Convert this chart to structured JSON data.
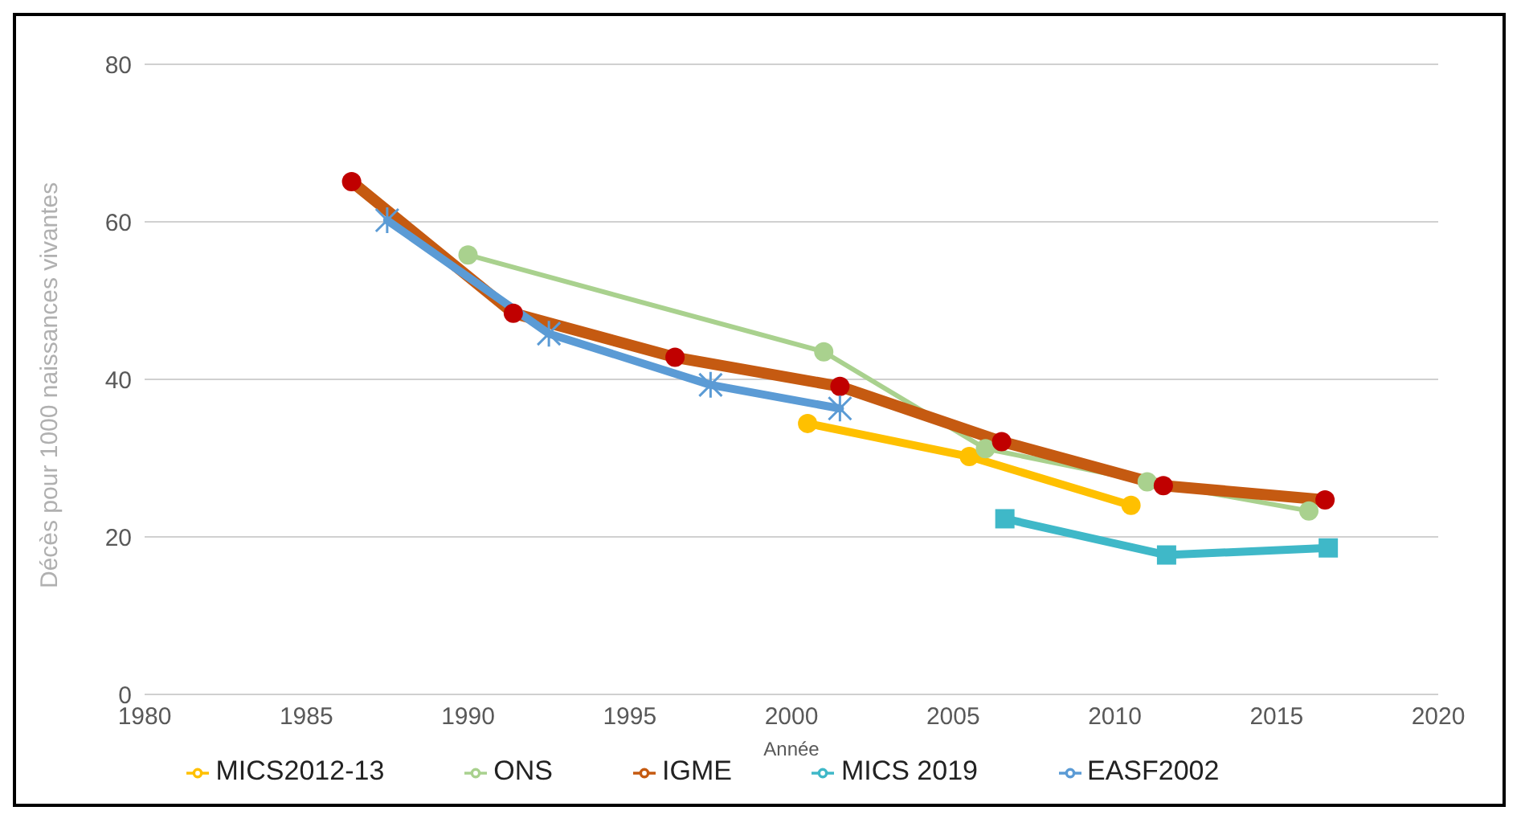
{
  "chart_data": {
    "type": "line",
    "xlabel": "Année",
    "ylabel": "Décès pour 1000 naissances vivantes",
    "xlim": [
      1980,
      2020
    ],
    "xticks": [
      1980,
      1985,
      1990,
      1995,
      2000,
      2005,
      2010,
      2015,
      2020
    ],
    "ylim": [
      0,
      80
    ],
    "yticks": [
      0,
      20,
      40,
      60,
      80
    ],
    "grid": "y",
    "legend": "bottom",
    "line_style": "solid",
    "series": [
      {
        "name": "MICS2012-13",
        "color": "#ffc000",
        "marker": "circle",
        "x": [
          2000.5,
          2005.5,
          2010.5
        ],
        "values": [
          34.4,
          30.2,
          24
        ]
      },
      {
        "name": "ONS",
        "color": "#a9d18e",
        "marker": "circle",
        "x": [
          1990,
          2001,
          2006,
          2011,
          2016
        ],
        "values": [
          55.8,
          43.5,
          31.2,
          27,
          23.3
        ]
      },
      {
        "name": "IGME",
        "color": "#c55a11",
        "marker": "circle",
        "x": [
          1986.4,
          1991.4,
          1996.4,
          2001.5,
          2006.5,
          2011.5,
          2016.5
        ],
        "values": [
          65.1,
          48.4,
          42.8,
          39.1,
          32.1,
          26.5,
          24.7
        ]
      },
      {
        "name": "MICS 2019",
        "color": "#3fb8c8",
        "marker": "square",
        "x": [
          2006.6,
          2011.6,
          2016.6
        ],
        "values": [
          22.3,
          17.7,
          18.6
        ]
      },
      {
        "name": "EASF2002",
        "color": "#5b9bd5",
        "marker": "cross",
        "x": [
          1987.5,
          1992.5,
          1997.5,
          2001.5
        ],
        "values": [
          60.2,
          45.8,
          39.3,
          36.3
        ]
      }
    ]
  }
}
